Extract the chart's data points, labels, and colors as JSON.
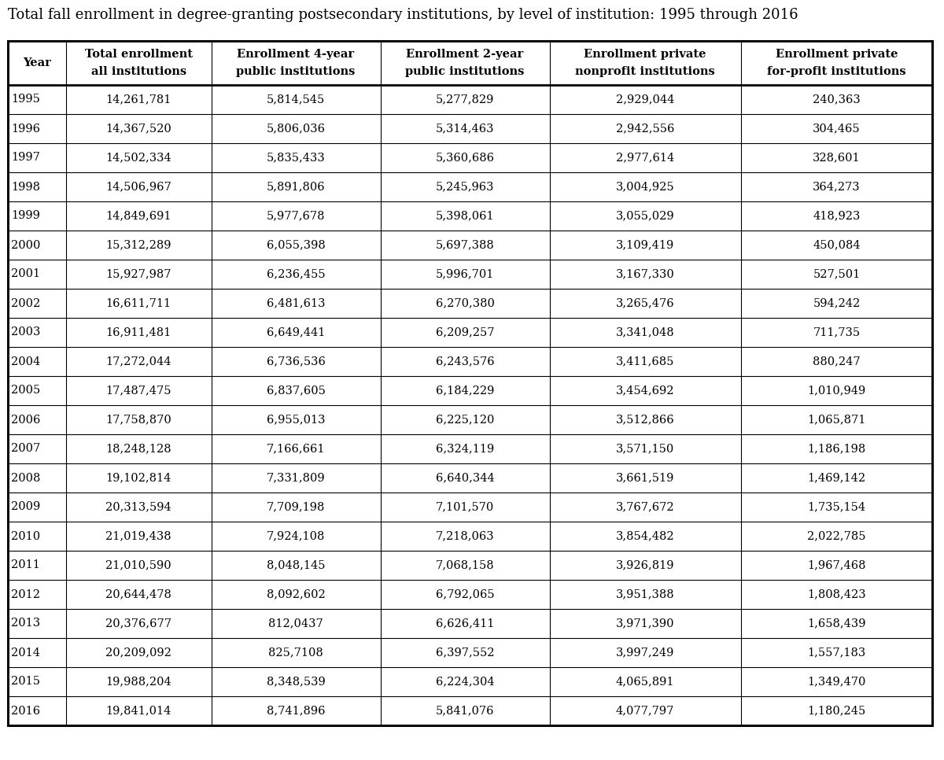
{
  "title": "Total fall enrollment in degree-granting postsecondary institutions, by level of institution: 1995 through 2016",
  "col_headers_line1": [
    "",
    "Total enrollment",
    "Enrollment 4-year",
    "Enrollment 2-year",
    "Enrollment private",
    "Enrollment private"
  ],
  "col_headers_line2": [
    "Year",
    "all institutions",
    "public institutions",
    "public institutions",
    "nonprofit institutions",
    "for-profit institutions"
  ],
  "years": [
    "1995",
    "1996",
    "1997",
    "1998",
    "1999",
    "2000",
    "2001",
    "2002",
    "2003",
    "2004",
    "2005",
    "2006",
    "2007",
    "2008",
    "2009",
    "2010",
    "2011",
    "2012",
    "2013",
    "2014",
    "2015",
    "2016"
  ],
  "col1": [
    "14,261,781",
    "14,367,520",
    "14,502,334",
    "14,506,967",
    "14,849,691",
    "15,312,289",
    "15,927,987",
    "16,611,711",
    "16,911,481",
    "17,272,044",
    "17,487,475",
    "17,758,870",
    "18,248,128",
    "19,102,814",
    "20,313,594",
    "21,019,438",
    "21,010,590",
    "20,644,478",
    "20,376,677",
    "20,209,092",
    "19,988,204",
    "19,841,014"
  ],
  "col2": [
    "5,814,545",
    "5,806,036",
    "5,835,433",
    "5,891,806",
    "5,977,678",
    "6,055,398",
    "6,236,455",
    "6,481,613",
    "6,649,441",
    "6,736,536",
    "6,837,605",
    "6,955,013",
    "7,166,661",
    "7,331,809",
    "7,709,198",
    "7,924,108",
    "8,048,145",
    "8,092,602",
    "812,0437",
    "825,7108",
    "8,348,539",
    "8,741,896"
  ],
  "col3": [
    "5,277,829",
    "5,314,463",
    "5,360,686",
    "5,245,963",
    "5,398,061",
    "5,697,388",
    "5,996,701",
    "6,270,380",
    "6,209,257",
    "6,243,576",
    "6,184,229",
    "6,225,120",
    "6,324,119",
    "6,640,344",
    "7,101,570",
    "7,218,063",
    "7,068,158",
    "6,792,065",
    "6,626,411",
    "6,397,552",
    "6,224,304",
    "5,841,076"
  ],
  "col4": [
    "2,929,044",
    "2,942,556",
    "2,977,614",
    "3,004,925",
    "3,055,029",
    "3,109,419",
    "3,167,330",
    "3,265,476",
    "3,341,048",
    "3,411,685",
    "3,454,692",
    "3,512,866",
    "3,571,150",
    "3,661,519",
    "3,767,672",
    "3,854,482",
    "3,926,819",
    "3,951,388",
    "3,971,390",
    "3,997,249",
    "4,065,891",
    "4,077,797"
  ],
  "col5": [
    "240,363",
    "304,465",
    "328,601",
    "364,273",
    "418,923",
    "450,084",
    "527,501",
    "594,242",
    "711,735",
    "880,247",
    "1,010,949",
    "1,065,871",
    "1,186,198",
    "1,469,142",
    "1,735,154",
    "2,022,785",
    "1,967,468",
    "1,808,423",
    "1,658,439",
    "1,557,183",
    "1,349,470",
    "1,180,245"
  ],
  "background_color": "#ffffff",
  "title_fontsize": 13,
  "header_fontsize": 10.5,
  "cell_fontsize": 10.5
}
